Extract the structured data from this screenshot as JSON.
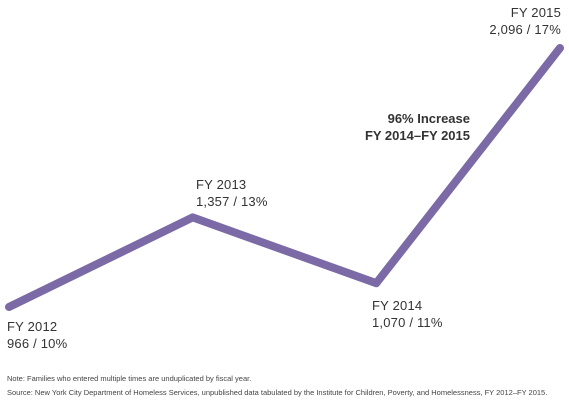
{
  "chart_data": {
    "type": "line",
    "x": [
      "FY 2012",
      "FY 2013",
      "FY 2014",
      "FY 2015"
    ],
    "series": [
      {
        "values": [
          966,
          1357,
          1070,
          2096
        ],
        "percents": [
          "10%",
          "13%",
          "11%",
          "17%"
        ],
        "color": "#7b6aa6"
      }
    ],
    "point_labels": [
      {
        "name": "FY 2012",
        "value": "966 / 10%"
      },
      {
        "name": "FY 2013",
        "value": "1,357 / 13%"
      },
      {
        "name": "FY 2014",
        "value": "1,070 / 11%"
      },
      {
        "name": "FY 2015",
        "value": "2,096 / 17%"
      }
    ],
    "annotation": {
      "line1": "96% Increase",
      "line2": "FY 2014–FY 2015"
    },
    "title": "",
    "xlabel": "",
    "ylabel": "",
    "ylim": [
      966,
      2096
    ],
    "grid": false,
    "axes_visible": false
  },
  "footnotes": {
    "note": "Note: Families who entered multiple times are unduplicated by fiscal year.",
    "source": "Source: New York City Department of Homeless Services, unpublished data tabulated by the Institute for Children, Poverty, and Homelessness, FY 2012–FY 2015."
  }
}
